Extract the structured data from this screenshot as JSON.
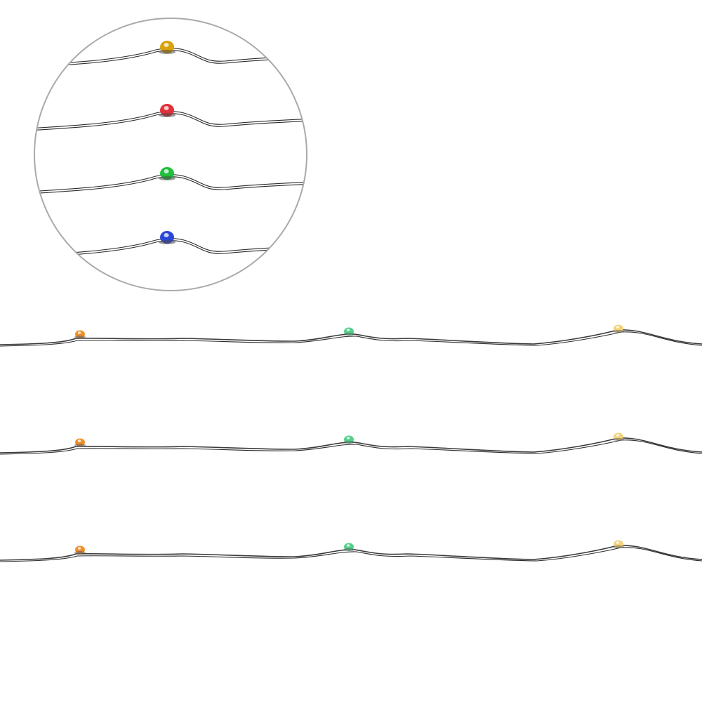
{
  "background": "#ffffff",
  "zoom_circle": {
    "stroke": "#a9a9ae"
  },
  "wire_color": "#3a3a3a",
  "magnified_leds": [
    {
      "name": "yellow-led",
      "color": "#d9a20a"
    },
    {
      "name": "red-led",
      "color": "#e0303a"
    },
    {
      "name": "green-led",
      "color": "#1fbf3a"
    },
    {
      "name": "blue-led",
      "color": "#2b47d8"
    }
  ],
  "strings": [
    {
      "leds": [
        {
          "name": "orange-led",
          "color": "#f0902a"
        },
        {
          "name": "green-led",
          "color": "#55d08a"
        },
        {
          "name": "yellow-led",
          "color": "#f2d27a"
        }
      ]
    },
    {
      "leds": [
        {
          "name": "orange-led",
          "color": "#f0902a"
        },
        {
          "name": "green-led",
          "color": "#55d08a"
        },
        {
          "name": "yellow-led",
          "color": "#f2d27a"
        }
      ]
    },
    {
      "leds": [
        {
          "name": "orange-led",
          "color": "#f0902a"
        },
        {
          "name": "green-led",
          "color": "#55d08a"
        },
        {
          "name": "yellow-led",
          "color": "#f2d27a"
        }
      ]
    }
  ]
}
